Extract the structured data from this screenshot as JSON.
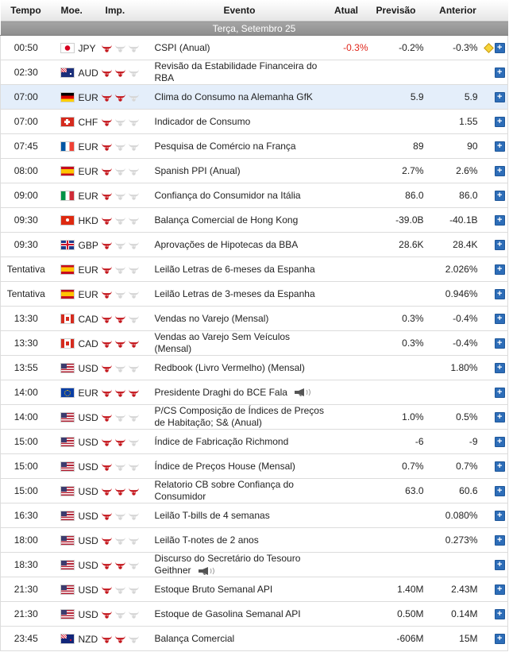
{
  "columns": {
    "time": "Tempo",
    "currency": "Moe.",
    "importance": "Imp.",
    "event": "Evento",
    "actual": "Atual",
    "forecast": "Previsão",
    "previous": "Anterior"
  },
  "day_label": "Terça, Setembro 25",
  "colors": {
    "bull_active": "#c4161c",
    "bull_inactive": "#d6d6d6",
    "actual_negative": "#e0261b",
    "highlight_row": "#e4eefa",
    "plus_button": "#2d6db8"
  },
  "icons": {
    "importance": "bull-icon",
    "details": "plus-icon",
    "speech": "megaphone-icon",
    "revised": "revised-diamond-icon"
  },
  "events": [
    {
      "time": "00:50",
      "flag": "jp",
      "currency": "JPY",
      "imp": 1,
      "event": "CSPI (Anual)",
      "actual": "-0.3%",
      "forecast": "-0.2%",
      "previous": "-0.3%",
      "revised": true
    },
    {
      "time": "02:30",
      "flag": "au",
      "currency": "AUD",
      "imp": 2,
      "event": "Revisão da Estabilidade Financeira do RBA",
      "actual": "",
      "forecast": "",
      "previous": ""
    },
    {
      "time": "07:00",
      "flag": "de",
      "currency": "EUR",
      "imp": 2,
      "event": "Clima do Consumo na Alemanha GfK",
      "actual": "",
      "forecast": "5.9",
      "previous": "5.9",
      "highlight": true
    },
    {
      "time": "07:00",
      "flag": "ch",
      "currency": "CHF",
      "imp": 1,
      "event": "Indicador de Consumo",
      "actual": "",
      "forecast": "",
      "previous": "1.55"
    },
    {
      "time": "07:45",
      "flag": "fr",
      "currency": "EUR",
      "imp": 1,
      "event": "Pesquisa de Comércio na França",
      "actual": "",
      "forecast": "89",
      "previous": "90"
    },
    {
      "time": "08:00",
      "flag": "es",
      "currency": "EUR",
      "imp": 1,
      "event": "Spanish PPI (Anual)",
      "actual": "",
      "forecast": "2.7%",
      "previous": "2.6%"
    },
    {
      "time": "09:00",
      "flag": "it",
      "currency": "EUR",
      "imp": 1,
      "event": "Confiança do Consumidor na Itália",
      "actual": "",
      "forecast": "86.0",
      "previous": "86.0"
    },
    {
      "time": "09:30",
      "flag": "hk",
      "currency": "HKD",
      "imp": 1,
      "event": "Balança Comercial de Hong Kong",
      "actual": "",
      "forecast": "-39.0B",
      "previous": "-40.1B"
    },
    {
      "time": "09:30",
      "flag": "gb",
      "currency": "GBP",
      "imp": 1,
      "event": "Aprovações de Hipotecas da BBA",
      "actual": "",
      "forecast": "28.6K",
      "previous": "28.4K"
    },
    {
      "time": "Tentativa",
      "flag": "es",
      "currency": "EUR",
      "imp": 1,
      "event": "Leilão Letras de 6-meses da Espanha",
      "actual": "",
      "forecast": "",
      "previous": "2.026%"
    },
    {
      "time": "Tentativa",
      "flag": "es",
      "currency": "EUR",
      "imp": 1,
      "event": "Leilão Letras de 3-meses da Espanha",
      "actual": "",
      "forecast": "",
      "previous": "0.946%"
    },
    {
      "time": "13:30",
      "flag": "ca",
      "currency": "CAD",
      "imp": 2,
      "event": "Vendas no Varejo (Mensal)",
      "actual": "",
      "forecast": "0.3%",
      "previous": "-0.4%"
    },
    {
      "time": "13:30",
      "flag": "ca",
      "currency": "CAD",
      "imp": 3,
      "event": "Vendas ao Varejo Sem Veículos (Mensal)",
      "actual": "",
      "forecast": "0.3%",
      "previous": "-0.4%"
    },
    {
      "time": "13:55",
      "flag": "us",
      "currency": "USD",
      "imp": 1,
      "event": "Redbook (Livro Vermelho) (Mensal)",
      "actual": "",
      "forecast": "",
      "previous": "1.80%"
    },
    {
      "time": "14:00",
      "flag": "eu",
      "currency": "EUR",
      "imp": 3,
      "event": "Presidente Draghi do BCE Fala",
      "actual": "",
      "forecast": "",
      "previous": "",
      "speech": true
    },
    {
      "time": "14:00",
      "flag": "us",
      "currency": "USD",
      "imp": 1,
      "event": "P/CS Composição de Índices de Preços de Habitação; S& (Anual)",
      "actual": "",
      "forecast": "1.0%",
      "previous": "0.5%"
    },
    {
      "time": "15:00",
      "flag": "us",
      "currency": "USD",
      "imp": 2,
      "event": "Índice de Fabricação Richmond",
      "actual": "",
      "forecast": "-6",
      "previous": "-9"
    },
    {
      "time": "15:00",
      "flag": "us",
      "currency": "USD",
      "imp": 1,
      "event": "Índice de Preços House (Mensal)",
      "actual": "",
      "forecast": "0.7%",
      "previous": "0.7%"
    },
    {
      "time": "15:00",
      "flag": "us",
      "currency": "USD",
      "imp": 3,
      "event": "Relatorio CB sobre Confiança do Consumidor",
      "actual": "",
      "forecast": "63.0",
      "previous": "60.6"
    },
    {
      "time": "16:30",
      "flag": "us",
      "currency": "USD",
      "imp": 1,
      "event": "Leilão T-bills de 4 semanas",
      "actual": "",
      "forecast": "",
      "previous": "0.080%"
    },
    {
      "time": "18:00",
      "flag": "us",
      "currency": "USD",
      "imp": 1,
      "event": "Leilão T-notes de 2 anos",
      "actual": "",
      "forecast": "",
      "previous": "0.273%"
    },
    {
      "time": "18:30",
      "flag": "us",
      "currency": "USD",
      "imp": 2,
      "event": "Discurso do Secretário do Tesouro Geithner",
      "actual": "",
      "forecast": "",
      "previous": "",
      "speech": true
    },
    {
      "time": "21:30",
      "flag": "us",
      "currency": "USD",
      "imp": 1,
      "event": "Estoque Bruto Semanal API",
      "actual": "",
      "forecast": "1.40M",
      "previous": "2.43M"
    },
    {
      "time": "21:30",
      "flag": "us",
      "currency": "USD",
      "imp": 1,
      "event": "Estoque de Gasolina Semanal API",
      "actual": "",
      "forecast": "0.50M",
      "previous": "0.14M"
    },
    {
      "time": "23:45",
      "flag": "nz",
      "currency": "NZD",
      "imp": 2,
      "event": "Balança Comercial",
      "actual": "",
      "forecast": "-606M",
      "previous": "15M"
    }
  ]
}
